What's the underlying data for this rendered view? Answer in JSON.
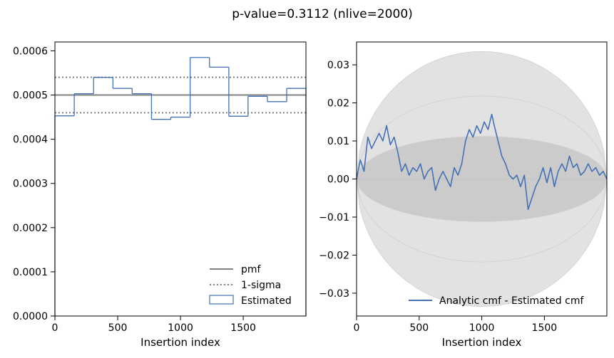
{
  "figure": {
    "title": "p-value=0.3112 (nlive=2000)",
    "colors": {
      "pmf": "#808080",
      "sigma": "#808080",
      "estimated": "#4470b5",
      "band_light": "#e2e2e2",
      "band_dark": "#cbcbcb",
      "axis": "#000000"
    }
  },
  "chart_data": [
    {
      "type": "step",
      "xlabel": "Insertion index",
      "ylabel": "",
      "xlim": [
        0,
        1999
      ],
      "ylim": [
        0,
        0.00062
      ],
      "xticks": [
        0,
        500,
        1000,
        1500
      ],
      "xtick_labels": [
        "0",
        "500",
        "1000",
        "1500"
      ],
      "yticks": [
        0,
        0.0001,
        0.0002,
        0.0003,
        0.0004,
        0.0005,
        0.0006
      ],
      "ytick_labels": [
        "0.0000",
        "0.0001",
        "0.0002",
        "0.0003",
        "0.0004",
        "0.0005",
        "0.0006"
      ],
      "pmf": 0.0005,
      "sigma_upper": 0.00054,
      "sigma_lower": 0.00046,
      "bin_edges": [
        0,
        154,
        308,
        462,
        615,
        769,
        923,
        1077,
        1231,
        1385,
        1538,
        1692,
        1846,
        1999
      ],
      "values": [
        0.000453,
        0.000503,
        0.00054,
        0.000515,
        0.000503,
        0.000445,
        0.00045,
        0.000585,
        0.000563,
        0.000452,
        0.000497,
        0.000485,
        0.000515
      ],
      "legend_position": "lower-right",
      "legend": [
        {
          "label": "pmf",
          "style": "solid"
        },
        {
          "label": "1-sigma",
          "style": "dotted"
        },
        {
          "label": "Estimated",
          "style": "patch"
        }
      ]
    },
    {
      "type": "line",
      "xlabel": "Insertion index",
      "ylabel": "",
      "xlim": [
        0,
        1999
      ],
      "ylim": [
        -0.036,
        0.036
      ],
      "xticks": [
        0,
        500,
        1000,
        1500
      ],
      "xtick_labels": [
        "0",
        "500",
        "1000",
        "1500"
      ],
      "yticks": [
        -0.03,
        -0.02,
        -0.01,
        0.0,
        0.01,
        0.02,
        0.03
      ],
      "ytick_labels": [
        "−0.03",
        "−0.02",
        "−0.01",
        "0.00",
        "0.01",
        "0.02",
        "0.03"
      ],
      "bands": [
        {
          "sigma": 3,
          "peak": 0.0335
        },
        {
          "sigma": 2,
          "peak": 0.0218
        },
        {
          "sigma": 1,
          "peak": 0.0112
        }
      ],
      "series": [
        {
          "name": "Analytic cmf - Estimated cmf",
          "x": [
            0,
            30,
            60,
            90,
            120,
            150,
            180,
            210,
            240,
            270,
            300,
            330,
            360,
            390,
            420,
            450,
            480,
            510,
            540,
            570,
            600,
            630,
            660,
            690,
            720,
            750,
            780,
            810,
            840,
            870,
            900,
            930,
            960,
            990,
            1020,
            1050,
            1080,
            1100,
            1130,
            1160,
            1190,
            1220,
            1250,
            1280,
            1310,
            1340,
            1370,
            1400,
            1430,
            1460,
            1490,
            1520,
            1550,
            1580,
            1610,
            1640,
            1670,
            1700,
            1730,
            1760,
            1790,
            1820,
            1850,
            1880,
            1910,
            1940,
            1970,
            1999
          ],
          "y": [
            0.0,
            0.005,
            0.002,
            0.011,
            0.008,
            0.01,
            0.012,
            0.01,
            0.014,
            0.009,
            0.011,
            0.007,
            0.002,
            0.004,
            0.001,
            0.003,
            0.002,
            0.004,
            0.0,
            0.002,
            0.003,
            -0.003,
            0.0,
            0.002,
            0.0,
            -0.002,
            0.003,
            0.001,
            0.004,
            0.01,
            0.013,
            0.011,
            0.014,
            0.012,
            0.015,
            0.013,
            0.017,
            0.014,
            0.01,
            0.006,
            0.004,
            0.001,
            0.0,
            0.001,
            -0.002,
            0.001,
            -0.008,
            -0.005,
            -0.002,
            0.0,
            0.003,
            -0.001,
            0.003,
            -0.002,
            0.002,
            0.004,
            0.002,
            0.006,
            0.003,
            0.004,
            0.001,
            0.002,
            0.004,
            0.002,
            0.003,
            0.001,
            0.002,
            0.0
          ]
        }
      ],
      "legend_position": "lower-right"
    }
  ]
}
